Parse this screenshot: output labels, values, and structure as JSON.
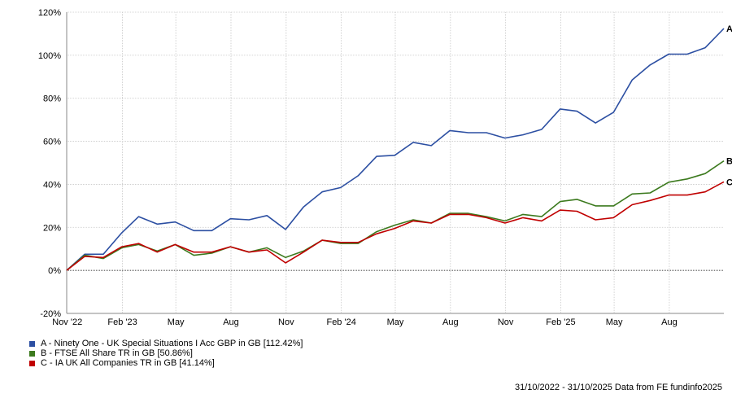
{
  "chart_data": {
    "type": "line",
    "ylim": [
      -20,
      120
    ],
    "y_ticks": [
      -20,
      0,
      20,
      40,
      60,
      80,
      100,
      120
    ],
    "y_tick_labels": [
      "-20%",
      "0%",
      "20%",
      "40%",
      "60%",
      "80%",
      "100%",
      "120%"
    ],
    "x_tick_labels": [
      "Nov '22",
      "Feb '23",
      "May",
      "Aug",
      "Nov",
      "Feb '24",
      "May",
      "Aug",
      "Nov",
      "Feb '25",
      "May",
      "Aug"
    ],
    "grid": true,
    "x": [
      "2022-10-31",
      "2022-11-30",
      "2022-12-31",
      "2023-01-31",
      "2023-02-28",
      "2023-03-31",
      "2023-04-30",
      "2023-05-31",
      "2023-06-30",
      "2023-07-31",
      "2023-08-31",
      "2023-09-30",
      "2023-10-31",
      "2023-11-30",
      "2023-12-31",
      "2024-01-31",
      "2024-02-29",
      "2024-03-31",
      "2024-04-30",
      "2024-05-31",
      "2024-06-30",
      "2024-07-31",
      "2024-08-31",
      "2024-09-30",
      "2024-10-31",
      "2024-11-30",
      "2024-12-31",
      "2025-01-31",
      "2025-02-28",
      "2025-03-31",
      "2025-04-30",
      "2025-05-31",
      "2025-06-30",
      "2025-07-31",
      "2025-08-31",
      "2025-09-30",
      "2025-10-31"
    ],
    "series": [
      {
        "name": "A - Ninety One - UK Special Situations I Acc GBP in GB [112.42%]",
        "end_label": "A",
        "color": "#2c4fa2",
        "values": [
          0,
          7.5,
          7.5,
          17.5,
          25,
          21.5,
          22.5,
          18.5,
          18.5,
          24,
          23.5,
          25.5,
          19,
          29.5,
          36.5,
          38.5,
          44,
          53,
          53.5,
          59.5,
          58,
          65,
          64,
          64,
          61.5,
          63,
          65.5,
          75,
          74,
          68.5,
          73.5,
          88.5,
          95.5,
          100.5,
          100.5,
          103.5,
          112.42
        ]
      },
      {
        "name": "B - FTSE All Share TR in GB [50.86%]",
        "end_label": "B",
        "color": "#3c7a1e",
        "values": [
          0,
          7,
          5.5,
          10.5,
          12,
          9,
          12,
          7,
          8,
          11,
          8.5,
          10.5,
          6,
          9,
          14,
          12.5,
          12.5,
          18,
          21,
          23.5,
          22,
          26.5,
          26.5,
          25,
          23,
          26,
          25,
          32,
          33,
          30,
          30,
          35.5,
          36,
          41,
          42.5,
          45,
          50.86
        ]
      },
      {
        "name": "C - IA UK All Companies TR in GB [41.14%]",
        "end_label": "C",
        "color": "#c00000",
        "values": [
          0,
          6.5,
          6,
          11,
          12.5,
          8.5,
          12,
          8.5,
          8.5,
          11,
          8.5,
          9.5,
          3.5,
          8.5,
          14,
          13,
          13,
          17,
          19.5,
          23,
          22,
          26,
          26,
          24.5,
          22,
          24.5,
          23,
          28,
          27.5,
          23.5,
          24.5,
          30.5,
          32.5,
          35,
          35,
          36.5,
          41.14
        ]
      }
    ]
  },
  "footer": {
    "date_range": "31/10/2022 - 31/10/2025",
    "source": "Data from FE fundinfo2025"
  }
}
